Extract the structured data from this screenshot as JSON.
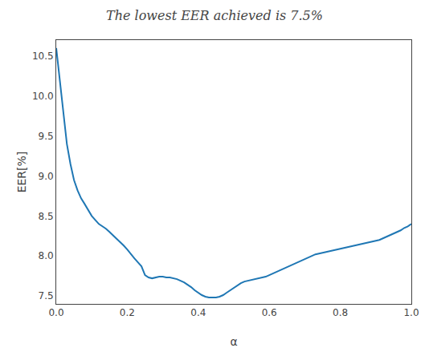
{
  "chart_data": {
    "type": "line",
    "title": "The lowest EER achieved is 7.5%",
    "x_label": "α",
    "y_label": "EER[%]",
    "color": "#1f77b4",
    "grid": false,
    "xlim": [
      0.0,
      1.0
    ],
    "ylim": [
      7.4,
      10.7
    ],
    "xticks": [
      {
        "value": 0.0,
        "label": "0.0"
      },
      0.2,
      0.4,
      0.6,
      0.8,
      {
        "value": 1.0,
        "label": "1.0"
      }
    ],
    "yticks": [
      7.5,
      {
        "value": 8.0,
        "label": "8.0"
      },
      8.5,
      {
        "value": 9.0,
        "label": "9.0"
      },
      9.5,
      {
        "value": 10.0,
        "label": "10.0"
      },
      10.5
    ],
    "x": [
      0.0,
      0.01,
      0.02,
      0.03,
      0.04,
      0.05,
      0.06,
      0.07,
      0.08,
      0.09,
      0.1,
      0.11,
      0.12,
      0.13,
      0.14,
      0.15,
      0.16,
      0.17,
      0.18,
      0.19,
      0.2,
      0.21,
      0.22,
      0.23,
      0.24,
      0.25,
      0.26,
      0.27,
      0.28,
      0.29,
      0.3,
      0.31,
      0.32,
      0.33,
      0.34,
      0.35,
      0.36,
      0.37,
      0.38,
      0.39,
      0.4,
      0.41,
      0.42,
      0.43,
      0.44,
      0.45,
      0.46,
      0.47,
      0.48,
      0.49,
      0.5,
      0.51,
      0.52,
      0.53,
      0.54,
      0.55,
      0.56,
      0.57,
      0.58,
      0.59,
      0.6,
      0.61,
      0.62,
      0.63,
      0.64,
      0.65,
      0.66,
      0.67,
      0.68,
      0.69,
      0.7,
      0.71,
      0.72,
      0.73,
      0.74,
      0.75,
      0.76,
      0.77,
      0.78,
      0.79,
      0.8,
      0.81,
      0.82,
      0.83,
      0.84,
      0.85,
      0.86,
      0.87,
      0.88,
      0.89,
      0.9,
      0.91,
      0.92,
      0.93,
      0.94,
      0.95,
      0.96,
      0.97,
      0.98,
      0.99,
      1.0
    ],
    "values": [
      10.6,
      10.2,
      9.75,
      9.4,
      9.15,
      8.95,
      8.82,
      8.72,
      8.65,
      8.58,
      8.5,
      8.45,
      8.4,
      8.37,
      8.34,
      8.3,
      8.26,
      8.22,
      8.18,
      8.13,
      8.08,
      8.02,
      7.97,
      7.92,
      7.87,
      7.76,
      7.73,
      7.72,
      7.73,
      7.74,
      7.74,
      7.73,
      7.73,
      7.72,
      7.71,
      7.69,
      7.67,
      7.64,
      7.61,
      7.57,
      7.54,
      7.51,
      7.49,
      7.48,
      7.48,
      7.48,
      7.49,
      7.51,
      7.54,
      7.57,
      7.6,
      7.63,
      7.66,
      7.68,
      7.69,
      7.7,
      7.71,
      7.72,
      7.73,
      7.74,
      7.76,
      7.78,
      7.8,
      7.82,
      7.84,
      7.86,
      7.88,
      7.9,
      7.92,
      7.94,
      7.96,
      7.98,
      8.0,
      8.02,
      8.03,
      8.04,
      8.05,
      8.06,
      8.07,
      8.08,
      8.09,
      8.1,
      8.11,
      8.12,
      8.13,
      8.14,
      8.15,
      8.16,
      8.17,
      8.18,
      8.19,
      8.2,
      8.22,
      8.24,
      8.26,
      8.28,
      8.3,
      8.32,
      8.35,
      8.37,
      8.4
    ]
  }
}
